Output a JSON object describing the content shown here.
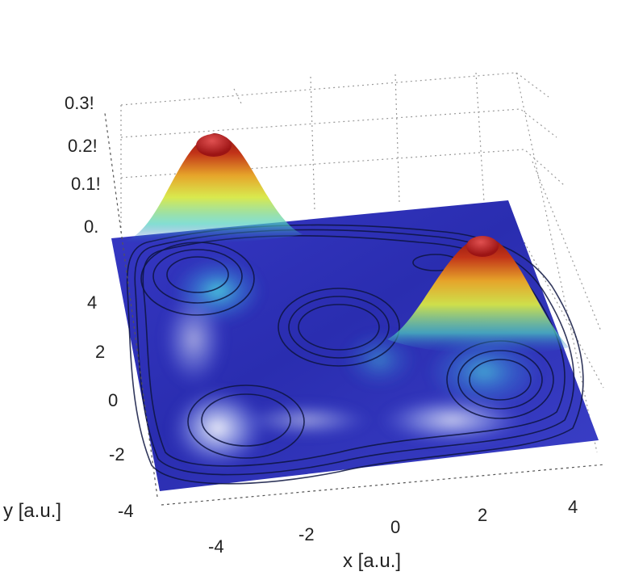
{
  "chart_data": {
    "type": "surface",
    "title": "",
    "xlabel": "x [a.u.]",
    "ylabel": "y [a.u.]",
    "zlabel": "",
    "x_ticks": [
      "-4",
      "-2",
      "0",
      "2",
      "4"
    ],
    "y_ticks": [
      "-4",
      "-2",
      "0",
      "2",
      "4"
    ],
    "z_ticks": [
      "0.",
      "0.1!",
      "0.2!",
      "0.3!"
    ],
    "xlim": [
      -5,
      5
    ],
    "ylim": [
      -4,
      6
    ],
    "zlim": [
      0,
      0.3
    ],
    "peaks": [
      {
        "x": -3.5,
        "y": 4.5,
        "z": 0.25
      },
      {
        "x": 3.5,
        "y": 4.0,
        "z": 0.25
      }
    ],
    "contours": true,
    "grid": true,
    "colormap": "jet",
    "colors": {
      "low": "#2e2fb8",
      "mid": "#e8ea3c",
      "high": "#b01515",
      "contour": "#0d1440",
      "grid": "#9a9a9a"
    }
  }
}
